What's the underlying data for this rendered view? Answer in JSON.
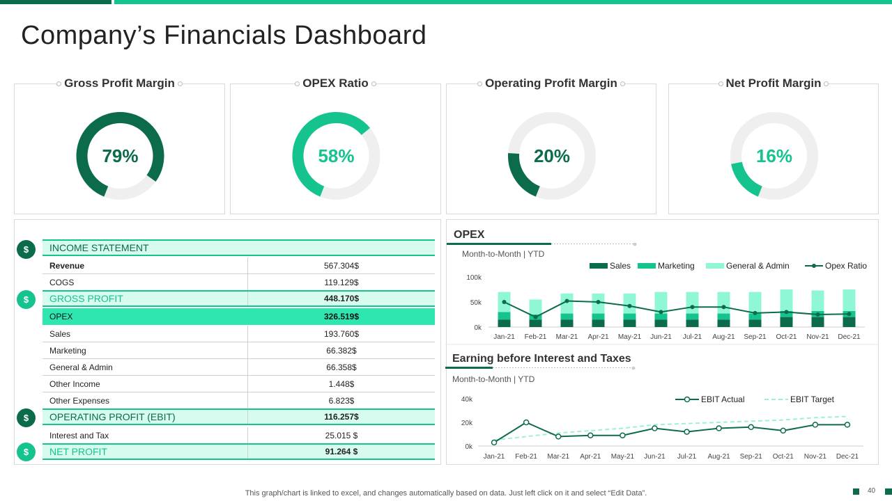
{
  "title": "Company’s Financials Dashboard",
  "colors": {
    "dark": "#0b6b4b",
    "mid": "#14c38e",
    "light": "#8ff7d6",
    "track": "#efefef"
  },
  "kpis": [
    {
      "label": "Gross Profit Margin",
      "value": 79,
      "display": "79%",
      "color": "#0b6b4b"
    },
    {
      "label": "OPEX Ratio",
      "value": 58,
      "display": "58%",
      "color": "#14c38e"
    },
    {
      "label": "Operating Profit Margin",
      "value": 20,
      "display": "20%",
      "color": "#0b6b4b"
    },
    {
      "label": "Net Profit Margin",
      "value": 16,
      "display": "16%",
      "color": "#14c38e"
    }
  ],
  "income": {
    "header": "INCOME  STATEMENT",
    "revenue": {
      "label": "Revenue",
      "value": "567.304$"
    },
    "cogs": {
      "label": "COGS",
      "value": "119.129$"
    },
    "gross": {
      "label": "GROSS PROFIT",
      "value": "448.170$"
    },
    "opex": {
      "label": "OPEX",
      "value": "326.519$"
    },
    "sales": {
      "label": "Sales",
      "value": "193.760$"
    },
    "marketing": {
      "label": "Marketing",
      "value": "66.382$"
    },
    "ga": {
      "label": "General & Admin",
      "value": "66.358$"
    },
    "other_income": {
      "label": "Other Income",
      "value": "1.448$"
    },
    "other_exp": {
      "label": "Other Expenses",
      "value": "6.823$"
    },
    "ebit": {
      "label": "OPERATING  PROFIT (EBIT)",
      "value": "116.257$"
    },
    "interest": {
      "label": "Interest and Tax",
      "value": "25.015 $"
    },
    "net": {
      "label": "NET PROFIT",
      "value": "91.264 $"
    }
  },
  "opex_section": {
    "title": "OPEX",
    "subtitle": "Month-to-Month  | YTD"
  },
  "ebit_section": {
    "title": "Earning before Interest  and Taxes",
    "subtitle": "Month-to-Month  | YTD"
  },
  "chart_data": [
    {
      "type": "bar",
      "title": "OPEX",
      "categories": [
        "Jan-21",
        "Feb-21",
        "Mar-21",
        "Apr-21",
        "May-21",
        "Jun-21",
        "Jul-21",
        "Aug-21",
        "Sep-21",
        "Oct-21",
        "Nov-21",
        "Dec-21"
      ],
      "ylim": [
        0,
        100
      ],
      "yticks": [
        "0k",
        "50k",
        "100k"
      ],
      "legend": [
        "Sales",
        "Marketing",
        "General & Admin",
        "Opex Ratio"
      ],
      "series": [
        {
          "name": "Sales",
          "values": [
            15,
            15,
            15,
            15,
            15,
            15,
            15,
            15,
            15,
            20,
            20,
            20
          ]
        },
        {
          "name": "Marketing",
          "values": [
            15,
            10,
            12,
            12,
            12,
            12,
            12,
            12,
            12,
            12,
            12,
            12
          ]
        },
        {
          "name": "General & Admin",
          "values": [
            40,
            30,
            40,
            40,
            40,
            43,
            43,
            43,
            43,
            43,
            41,
            43
          ]
        },
        {
          "name": "Opex Ratio",
          "values": [
            50,
            20,
            52,
            50,
            42,
            30,
            40,
            40,
            28,
            30,
            25,
            26
          ]
        }
      ]
    },
    {
      "type": "line",
      "title": "Earning before Interest  and Taxes",
      "categories": [
        "Jan-21",
        "Feb-21",
        "Mar-21",
        "Apr-21",
        "May-21",
        "Jun-21",
        "Jul-21",
        "Aug-21",
        "Sep-21",
        "Oct-21",
        "Nov-21",
        "Dec-21"
      ],
      "ylim": [
        0,
        40
      ],
      "yticks": [
        "0k",
        "20k",
        "40k"
      ],
      "legend": [
        "EBIT Actual",
        "EBIT Target"
      ],
      "series": [
        {
          "name": "EBIT Actual",
          "values": [
            3,
            20,
            8,
            9,
            9,
            15,
            12,
            15,
            16,
            13,
            18,
            18
          ]
        },
        {
          "name": "EBIT Target",
          "values": [
            5,
            8,
            11,
            13,
            15,
            18,
            19,
            20,
            21,
            22,
            24,
            25
          ]
        }
      ]
    }
  ],
  "footer": "This graph/chart is linked to excel,  and changes automatically based on data. Just left click on it and select “Edit Data”.",
  "page_number": "40"
}
